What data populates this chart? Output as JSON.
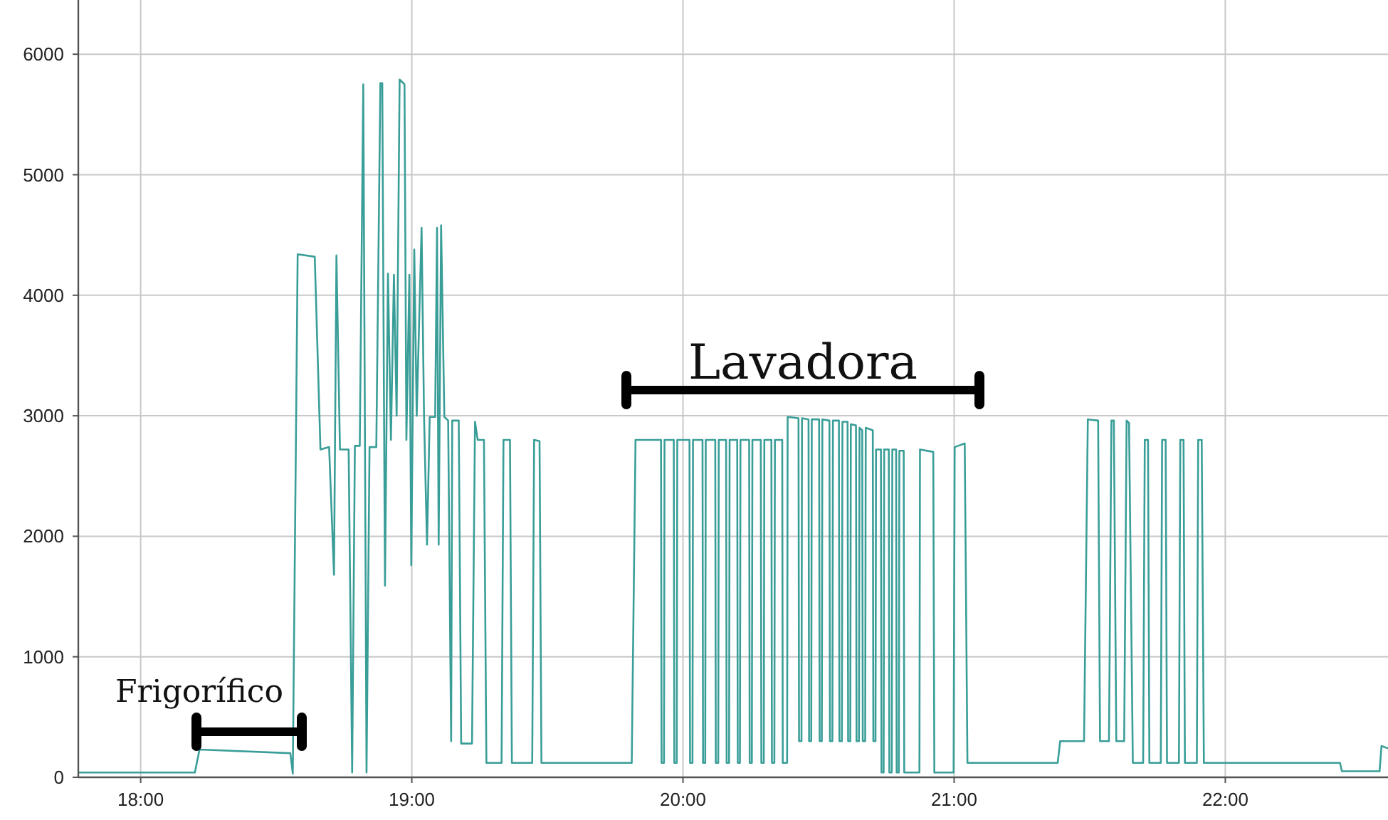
{
  "chart_data": {
    "type": "line",
    "color": "#3a9e98",
    "x": [
      17.77,
      18.2,
      18.217,
      18.552,
      18.561,
      18.579,
      18.642,
      18.663,
      18.695,
      18.713,
      18.722,
      18.735,
      18.767,
      18.78,
      18.79,
      18.808,
      18.821,
      18.833,
      18.844,
      18.869,
      18.884,
      18.891,
      18.901,
      18.912,
      18.923,
      18.934,
      18.944,
      18.955,
      18.973,
      18.98,
      18.991,
      18.998,
      19.009,
      19.018,
      19.036,
      19.045,
      19.056,
      19.066,
      19.086,
      19.093,
      19.099,
      19.108,
      19.12,
      19.134,
      19.145,
      19.149,
      19.173,
      19.182,
      19.222,
      19.233,
      19.243,
      19.266,
      19.275,
      19.331,
      19.338,
      19.362,
      19.369,
      19.444,
      19.451,
      19.471,
      19.478,
      19.811,
      19.825,
      19.919,
      19.921,
      19.93,
      19.932,
      19.966,
      19.968,
      19.977,
      19.979,
      20.024,
      20.026,
      20.035,
      20.037,
      20.072,
      20.074,
      20.082,
      20.084,
      20.119,
      20.121,
      20.13,
      20.132,
      20.159,
      20.161,
      20.17,
      20.172,
      20.2,
      20.202,
      20.21,
      20.212,
      20.244,
      20.246,
      20.254,
      20.256,
      20.287,
      20.289,
      20.298,
      20.3,
      20.326,
      20.328,
      20.337,
      20.339,
      20.366,
      20.368,
      20.384,
      20.386,
      20.426,
      20.428,
      20.437,
      20.439,
      20.463,
      20.465,
      20.473,
      20.475,
      20.502,
      20.504,
      20.512,
      20.514,
      20.54,
      20.542,
      20.551,
      20.553,
      20.575,
      20.577,
      20.586,
      20.588,
      20.607,
      20.609,
      20.617,
      20.619,
      20.638,
      20.64,
      20.649,
      20.651,
      20.661,
      20.663,
      20.672,
      20.674,
      20.7,
      20.702,
      20.71,
      20.712,
      20.73,
      20.732,
      20.74,
      20.742,
      20.759,
      20.761,
      20.77,
      20.772,
      20.786,
      20.788,
      20.796,
      20.798,
      20.814,
      20.816,
      20.872,
      20.874,
      20.923,
      20.927,
      20.998,
      21.002,
      21.039,
      21.049,
      21.382,
      21.391,
      21.479,
      21.493,
      21.531,
      21.538,
      21.571,
      21.58,
      21.589,
      21.598,
      21.627,
      21.636,
      21.645,
      21.659,
      21.697,
      21.703,
      21.715,
      21.72,
      21.762,
      21.767,
      21.78,
      21.785,
      21.829,
      21.834,
      21.846,
      21.851,
      21.895,
      21.9,
      21.913,
      21.921,
      22.423,
      22.43,
      22.569,
      22.576,
      22.6
    ],
    "values": [
      40,
      40,
      230,
      200,
      30,
      4340,
      4320,
      2720,
      2740,
      1680,
      4330,
      2720,
      2720,
      40,
      2750,
      2750,
      5750,
      40,
      2740,
      2740,
      5760,
      5760,
      1590,
      4180,
      2800,
      4170,
      3000,
      5790,
      5750,
      2800,
      4170,
      1760,
      4380,
      3000,
      4560,
      3000,
      1930,
      2990,
      2990,
      4560,
      1930,
      4580,
      2990,
      2960,
      300,
      2960,
      2960,
      280,
      280,
      2950,
      2800,
      2800,
      120,
      120,
      2800,
      2800,
      120,
      120,
      2800,
      2790,
      120,
      120,
      2800,
      2800,
      120,
      120,
      2800,
      2800,
      120,
      120,
      2800,
      2800,
      120,
      120,
      2800,
      2800,
      120,
      120,
      2800,
      2800,
      120,
      120,
      2800,
      2800,
      120,
      120,
      2800,
      2800,
      120,
      120,
      2800,
      2800,
      120,
      120,
      2800,
      2800,
      120,
      120,
      2800,
      2800,
      120,
      120,
      2800,
      2800,
      120,
      120,
      2990,
      2980,
      300,
      300,
      2980,
      2970,
      300,
      300,
      2970,
      2970,
      300,
      300,
      2970,
      2960,
      300,
      300,
      2960,
      2960,
      300,
      300,
      2950,
      2950,
      300,
      300,
      2930,
      2920,
      300,
      300,
      2900,
      2880,
      300,
      300,
      2900,
      2880,
      300,
      300,
      2720,
      2720,
      40,
      40,
      2720,
      2720,
      40,
      40,
      2720,
      2720,
      40,
      40,
      2710,
      2710,
      40,
      40,
      2720,
      2700,
      40,
      40,
      2740,
      2770,
      120,
      120,
      300,
      300,
      2970,
      2960,
      300,
      300,
      2960,
      2960,
      300,
      300,
      2960,
      2940,
      120,
      120,
      2800,
      2800,
      120,
      120,
      2800,
      2800,
      120,
      120,
      2800,
      2800,
      120,
      120,
      2800,
      2800,
      120,
      120,
      50,
      50,
      260,
      240
    ],
    "xlim": [
      17.77,
      22.6
    ],
    "ylim": [
      0,
      6450
    ],
    "xticks": [
      {
        "value": 18,
        "label": "18:00"
      },
      {
        "value": 19,
        "label": "19:00"
      },
      {
        "value": 20,
        "label": "20:00"
      },
      {
        "value": 21,
        "label": "21:00"
      },
      {
        "value": 22,
        "label": "22:00"
      }
    ],
    "yticks": [
      0,
      1000,
      2000,
      3000,
      4000,
      5000,
      6000
    ],
    "grid": true,
    "annotations": [
      "Frigorífico",
      "Lavadora"
    ]
  }
}
